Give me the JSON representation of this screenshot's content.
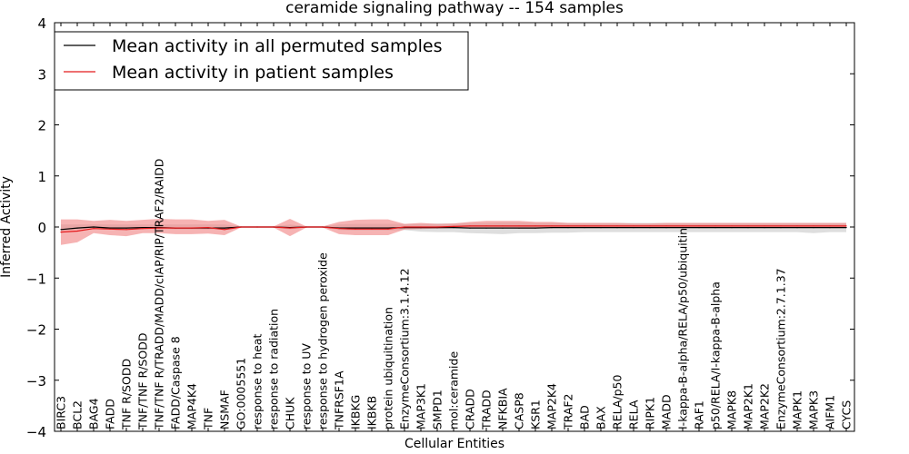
{
  "chart_data": {
    "type": "line",
    "title": "ceramide signaling pathway -- 154 samples",
    "xlabel": "Cellular Entities",
    "ylabel": "Inferred Activity",
    "ylim": [
      -4,
      4
    ],
    "yticks": [
      -4,
      -3,
      -2,
      -1,
      0,
      1,
      2,
      3,
      4
    ],
    "ytick_labels": [
      "−4",
      "−3",
      "−2",
      "−1",
      "0",
      "1",
      "2",
      "3",
      "4"
    ],
    "legend_position": "top-left",
    "categories": [
      "BIRC3",
      "BCL2",
      "BAG4",
      "FADD",
      "TNF R/SODD",
      "TNF/TNF R/SODD",
      "TNF/TNF R/TRADD/MADD/cIAP/RIP/TRAF2/RAIDD",
      "FADD/Caspase 8",
      "MAP4K4",
      "TNF",
      "NSMAF",
      "GO:0005551",
      "response to heat",
      "response to radiation",
      "CHUK",
      "response to UV",
      "response to hydrogen peroxide",
      "TNFRSF1A",
      "IKBKG",
      "IKBKB",
      "protein ubiquitination",
      "EnzymeConsortium:3.1.4.12",
      "MAP3K1",
      "SMPD1",
      "mol:ceramide",
      "CRADD",
      "TRADD",
      "NFKBIA",
      "CASP8",
      "KSR1",
      "MAP2K4",
      "TRAF2",
      "BAD",
      "BAX",
      "RELA/p50",
      "RELA",
      "RIPK1",
      "MADD",
      "I-kappa-B-alpha/RELA/p50/ubiquitin",
      "RAF1",
      "p50/RELA/I-kappa-B-alpha",
      "MAPK8",
      "MAP2K1",
      "MAP2K2",
      "EnzymeConsortium:2.7.1.37",
      "MAPK1",
      "MAPK3",
      "AIFM1",
      "CYCS"
    ],
    "series": [
      {
        "name": "Mean activity in all permuted samples",
        "color": "#000000",
        "values": [
          -0.05,
          -0.02,
          0.0,
          -0.02,
          -0.02,
          -0.01,
          -0.01,
          -0.02,
          -0.02,
          -0.02,
          -0.02,
          0.0,
          0.0,
          0.0,
          -0.01,
          0.0,
          0.0,
          -0.02,
          -0.02,
          -0.02,
          -0.02,
          -0.01,
          -0.01,
          -0.01,
          -0.01,
          -0.02,
          -0.02,
          -0.02,
          -0.02,
          -0.02,
          -0.01,
          -0.01,
          -0.01,
          -0.01,
          -0.01,
          -0.01,
          -0.01,
          -0.01,
          -0.01,
          -0.01,
          -0.01,
          -0.01,
          -0.01,
          -0.01,
          -0.01,
          -0.01,
          -0.01,
          -0.01,
          -0.01
        ],
        "band_low": [
          -0.08,
          -0.05,
          -0.02,
          -0.05,
          -0.05,
          -0.04,
          -0.04,
          -0.05,
          -0.05,
          -0.05,
          -0.05,
          -0.01,
          -0.01,
          -0.01,
          -0.05,
          -0.01,
          -0.01,
          -0.06,
          -0.07,
          -0.07,
          -0.07,
          -0.06,
          -0.09,
          -0.1,
          -0.1,
          -0.12,
          -0.13,
          -0.14,
          -0.12,
          -0.12,
          -0.11,
          -0.11,
          -0.1,
          -0.1,
          -0.1,
          -0.1,
          -0.1,
          -0.1,
          -0.1,
          -0.1,
          -0.1,
          -0.1,
          -0.1,
          -0.1,
          -0.1,
          -0.1,
          -0.12,
          -0.1,
          -0.1
        ],
        "band_high": [
          0.05,
          0.05,
          0.05,
          0.05,
          0.05,
          0.05,
          0.05,
          0.05,
          0.05,
          0.05,
          0.05,
          0.01,
          0.01,
          0.01,
          0.05,
          0.01,
          0.01,
          0.05,
          0.06,
          0.06,
          0.06,
          0.06,
          0.06,
          0.07,
          0.07,
          0.08,
          0.08,
          0.09,
          0.09,
          0.08,
          0.08,
          0.08,
          0.08,
          0.08,
          0.08,
          0.08,
          0.08,
          0.08,
          0.08,
          0.08,
          0.08,
          0.08,
          0.08,
          0.08,
          0.08,
          0.08,
          0.08,
          0.08,
          0.08
        ],
        "band_color": "#c8c8c8"
      },
      {
        "name": "Mean activity in patient samples",
        "color": "#e41a1c",
        "values": [
          -0.1,
          -0.08,
          -0.03,
          -0.04,
          -0.05,
          -0.03,
          -0.02,
          -0.02,
          -0.02,
          -0.01,
          -0.05,
          0.0,
          0.0,
          0.0,
          -0.02,
          0.0,
          0.0,
          -0.03,
          -0.04,
          -0.04,
          -0.04,
          0.0,
          0.0,
          0.0,
          0.01,
          0.02,
          0.02,
          0.02,
          0.02,
          0.02,
          0.02,
          0.02,
          0.02,
          0.02,
          0.02,
          0.02,
          0.02,
          0.02,
          0.02,
          0.02,
          0.02,
          0.02,
          0.02,
          0.02,
          0.02,
          0.02,
          0.02,
          0.02,
          0.02
        ],
        "band_low": [
          -0.35,
          -0.3,
          -0.12,
          -0.16,
          -0.18,
          -0.12,
          -0.12,
          -0.14,
          -0.14,
          -0.13,
          -0.16,
          -0.01,
          -0.01,
          -0.01,
          -0.18,
          -0.01,
          -0.01,
          -0.14,
          -0.16,
          -0.16,
          -0.16,
          -0.05,
          -0.04,
          -0.03,
          -0.02,
          -0.02,
          -0.02,
          -0.02,
          -0.03,
          -0.03,
          -0.02,
          -0.02,
          -0.02,
          -0.02,
          -0.02,
          -0.02,
          -0.02,
          -0.02,
          -0.02,
          -0.02,
          -0.02,
          -0.02,
          -0.02,
          -0.02,
          -0.02,
          -0.02,
          -0.02,
          -0.02,
          -0.02
        ],
        "band_high": [
          0.15,
          0.15,
          0.12,
          0.14,
          0.12,
          0.14,
          0.16,
          0.15,
          0.15,
          0.12,
          0.14,
          0.01,
          0.01,
          0.01,
          0.16,
          0.01,
          0.01,
          0.1,
          0.14,
          0.15,
          0.15,
          0.06,
          0.08,
          0.06,
          0.07,
          0.1,
          0.12,
          0.12,
          0.12,
          0.1,
          0.1,
          0.08,
          0.08,
          0.08,
          0.08,
          0.07,
          0.07,
          0.08,
          0.08,
          0.08,
          0.08,
          0.08,
          0.08,
          0.08,
          0.08,
          0.08,
          0.08,
          0.08,
          0.08
        ],
        "band_color": "#f08080"
      }
    ]
  }
}
